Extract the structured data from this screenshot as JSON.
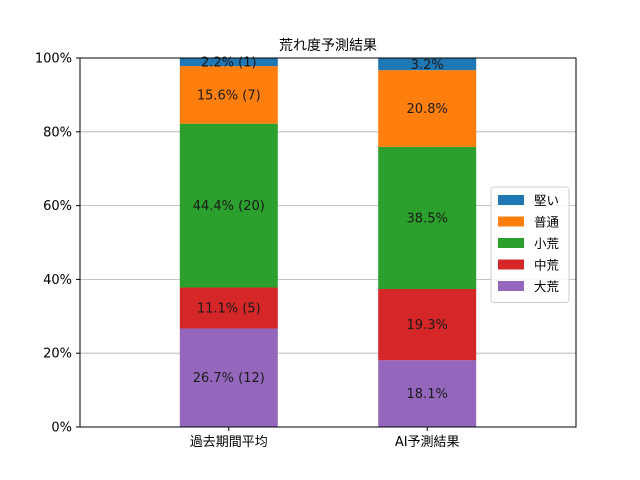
{
  "chart_data": {
    "type": "bar",
    "stacked": true,
    "title": "荒れ度予測結果",
    "xlabel": "",
    "ylabel": "",
    "ylim": [
      0,
      100
    ],
    "y_ticks": [
      "0%",
      "20%",
      "40%",
      "60%",
      "80%",
      "100%"
    ],
    "grid": "y",
    "legend_position": "right",
    "categories": [
      "過去期間平均",
      "AI予測結果"
    ],
    "series": [
      {
        "name": "大荒",
        "color": "#9467bd",
        "values": [
          26.7,
          18.1
        ],
        "labels": [
          "26.7% (12)",
          "18.1%"
        ]
      },
      {
        "name": "中荒",
        "color": "#d62728",
        "values": [
          11.1,
          19.3
        ],
        "labels": [
          "11.1% (5)",
          "19.3%"
        ]
      },
      {
        "name": "小荒",
        "color": "#2ca02c",
        "values": [
          44.4,
          38.5
        ],
        "labels": [
          "44.4% (20)",
          "38.5%"
        ]
      },
      {
        "name": "普通",
        "color": "#ff7f0e",
        "values": [
          15.6,
          20.8
        ],
        "labels": [
          "15.6% (7)",
          "20.8%"
        ]
      },
      {
        "name": "堅い",
        "color": "#1f77b4",
        "values": [
          2.2,
          3.2
        ],
        "labels": [
          "2.2% (1)",
          "3.2%"
        ]
      }
    ],
    "legend_order": [
      "堅い",
      "普通",
      "小荒",
      "中荒",
      "大荒"
    ]
  }
}
